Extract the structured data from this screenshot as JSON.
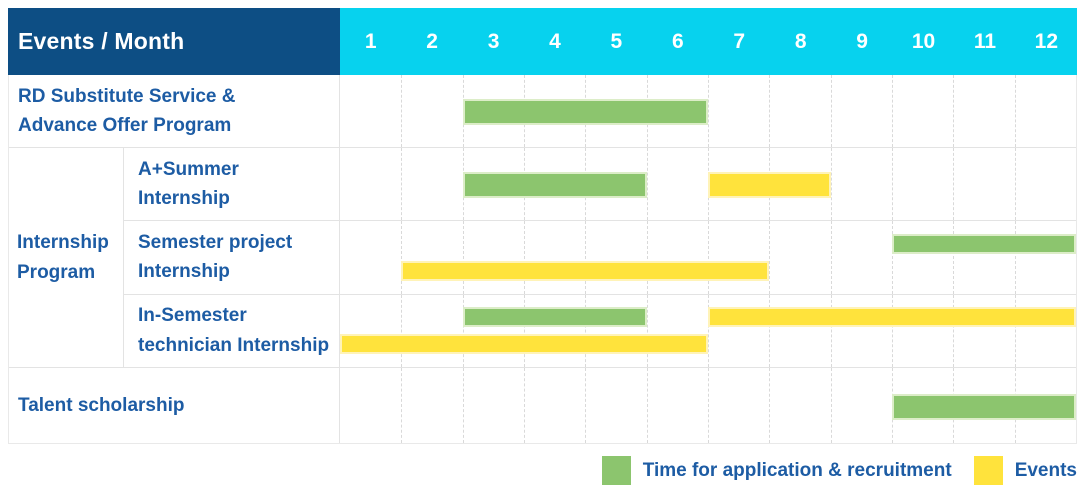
{
  "ui": {
    "header": {
      "title": "Events / Month",
      "months": [
        "1",
        "2",
        "3",
        "4",
        "5",
        "6",
        "7",
        "8",
        "9",
        "10",
        "11",
        "12"
      ]
    },
    "row_labels": {
      "rd": "RD Substitute Service &\nAdvance Offer Program",
      "group": "Internship\nProgram",
      "summer": "A+Summer\nInternship",
      "semester": "Semester project\nInternship",
      "technician": "In-Semester\ntechnician Internship",
      "talent": "Talent scholarship"
    },
    "legend": {
      "application": "Time for application & recruitment",
      "events": "Events"
    },
    "colors": {
      "header_bg": "#0D4E84",
      "months_bg": "#07D2EE",
      "green": "#8CC56E",
      "yellow": "#FFE33C",
      "text_blue": "#1D5CA4",
      "grid_line": "#D9D9D9",
      "row_divider": "#E3E3E3"
    }
  },
  "chart_data": {
    "type": "bar",
    "variant": "gantt-schedule",
    "title": "Events / Month",
    "x_axis": {
      "label": "Month",
      "ticks": [
        1,
        2,
        3,
        4,
        5,
        6,
        7,
        8,
        9,
        10,
        11,
        12
      ],
      "range": [
        1,
        12
      ],
      "gridlines": "dashed"
    },
    "legend_position": "bottom-right",
    "series": {
      "application": {
        "name": "Time for application & recruitment",
        "color": "#8CC56E"
      },
      "events": {
        "name": "Events",
        "color": "#FFE33C"
      }
    },
    "rows": [
      {
        "label": "RD Substitute Service & Advance Offer Program",
        "group": null,
        "bars": [
          {
            "series": "application",
            "start_month": 3,
            "end_month": 6,
            "band": "center"
          }
        ]
      },
      {
        "label": "A+Summer Internship",
        "group": "Internship Program",
        "bars": [
          {
            "series": "application",
            "start_month": 3,
            "end_month": 5,
            "band": "center"
          },
          {
            "series": "events",
            "start_month": 7,
            "end_month": 8,
            "band": "center"
          }
        ]
      },
      {
        "label": "Semester project Internship",
        "group": "Internship Program",
        "bars": [
          {
            "series": "application",
            "start_month": 10,
            "end_month": 12,
            "band": "upper"
          },
          {
            "series": "events",
            "start_month": 2,
            "end_month": 7,
            "band": "lower"
          }
        ]
      },
      {
        "label": "In-Semester technician Internship",
        "group": "Internship Program",
        "bars": [
          {
            "series": "application",
            "start_month": 3,
            "end_month": 5,
            "band": "upper"
          },
          {
            "series": "events",
            "start_month": 7,
            "end_month": 12,
            "band": "upper"
          },
          {
            "series": "events",
            "start_month": 1,
            "end_month": 6,
            "band": "lower"
          }
        ]
      },
      {
        "label": "Talent scholarship",
        "group": null,
        "bars": [
          {
            "series": "application",
            "start_month": 10,
            "end_month": 12,
            "band": "center"
          }
        ]
      }
    ]
  }
}
